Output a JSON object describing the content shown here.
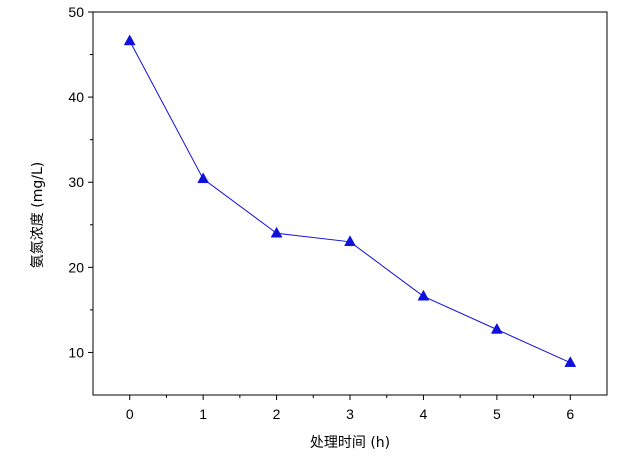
{
  "chart_data": {
    "type": "line",
    "title": "",
    "xlabel": "处理时间 (h)",
    "ylabel": "氨氮浓度 (mg/L)",
    "x": [
      0,
      1,
      2,
      3,
      4,
      5,
      6
    ],
    "series": [
      {
        "values": [
          46.6,
          30.4,
          24.0,
          23.0,
          16.6,
          12.7,
          8.8
        ],
        "color": "#1010dd",
        "marker": "triangle"
      }
    ],
    "xlim": [
      -0.5,
      6.5
    ],
    "ylim": [
      5,
      50
    ],
    "xticks": [
      0,
      1,
      2,
      3,
      4,
      5,
      6
    ],
    "xtick_labels": [
      "0",
      "1",
      "2",
      "3",
      "4",
      "5",
      "6"
    ],
    "yticks": [
      10,
      20,
      30,
      40,
      50
    ],
    "ytick_labels": [
      "10",
      "20",
      "30",
      "40",
      "50"
    ],
    "grid": false,
    "legend": "none"
  }
}
